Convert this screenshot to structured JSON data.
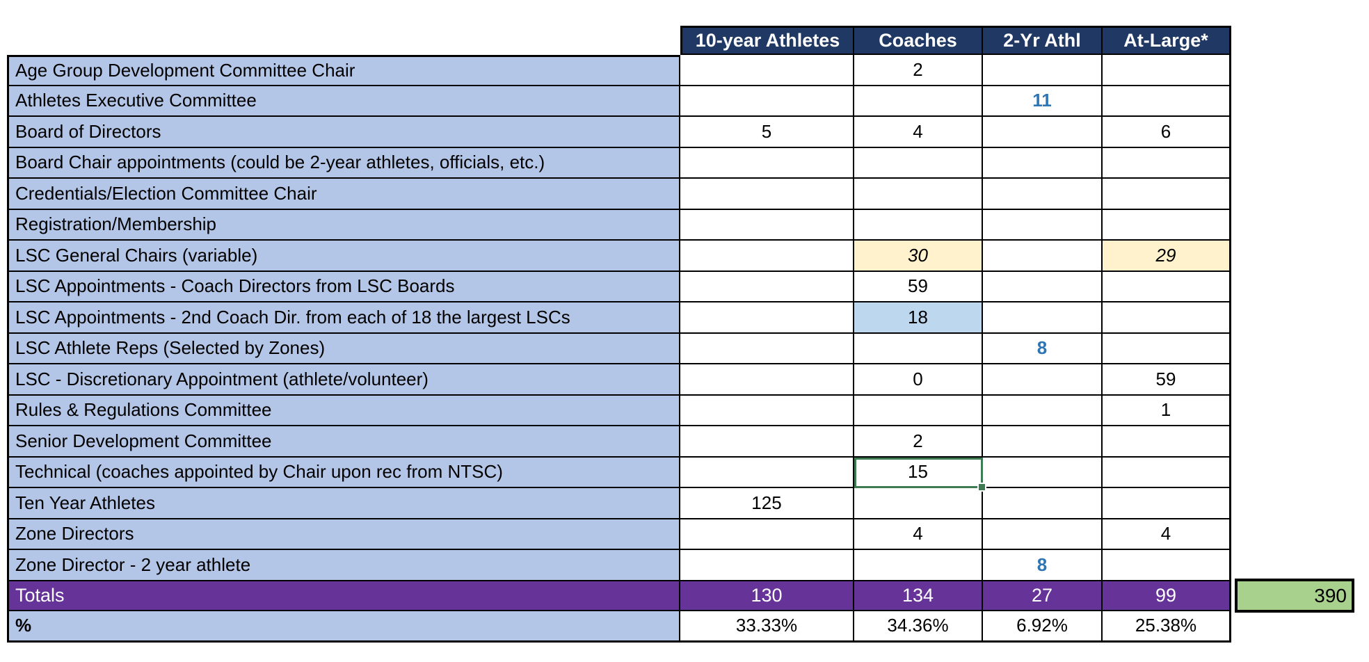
{
  "table": {
    "columns": [
      "10-year Athletes",
      "Coaches",
      "2-Yr Athl",
      "At-Large*"
    ],
    "rows": [
      {
        "label": "Age Group Development Committee Chair",
        "values": [
          "",
          "2",
          "",
          ""
        ]
      },
      {
        "label": "Athletes Executive Committee",
        "values": [
          "",
          "",
          "11",
          ""
        ]
      },
      {
        "label": "Board of Directors",
        "values": [
          "5",
          "4",
          "",
          "6"
        ]
      },
      {
        "label": "Board Chair appointments (could be 2-year athletes, officials, etc.)",
        "values": [
          "",
          "",
          "",
          ""
        ]
      },
      {
        "label": "Credentials/Election Committee Chair",
        "values": [
          "",
          "",
          "",
          ""
        ]
      },
      {
        "label": "Registration/Membership",
        "values": [
          "",
          "",
          "",
          ""
        ]
      },
      {
        "label": "LSC General Chairs (variable)",
        "values": [
          "",
          "30",
          "",
          "29"
        ]
      },
      {
        "label": "LSC Appointments - Coach Directors from LSC Boards",
        "values": [
          "",
          "59",
          "",
          ""
        ]
      },
      {
        "label": "LSC Appointments - 2nd Coach Dir. from each of 18 the largest LSCs",
        "values": [
          "",
          "18",
          "",
          ""
        ]
      },
      {
        "label": "LSC Athlete Reps (Selected by Zones)",
        "values": [
          "",
          "",
          "8",
          ""
        ]
      },
      {
        "label": "LSC - Discretionary Appointment (athlete/volunteer)",
        "values": [
          "",
          "0",
          "",
          "59"
        ]
      },
      {
        "label": "Rules & Regulations Committee",
        "values": [
          "",
          "",
          "",
          "1"
        ]
      },
      {
        "label": "Senior Development Committee",
        "values": [
          "",
          "2",
          "",
          ""
        ]
      },
      {
        "label": "Technical  (coaches appointed by Chair upon rec from NTSC)",
        "values": [
          "",
          "15",
          "",
          ""
        ]
      },
      {
        "label": "Ten Year Athletes",
        "values": [
          "125",
          "",
          "",
          ""
        ]
      },
      {
        "label": "Zone Directors",
        "values": [
          "",
          "4",
          "",
          "4"
        ]
      },
      {
        "label": "Zone Director - 2 year athlete",
        "values": [
          "",
          "",
          "8",
          ""
        ]
      }
    ],
    "totals": {
      "label": "Totals",
      "values": [
        "130",
        "134",
        "27",
        "99"
      ]
    },
    "grand_total": "390",
    "percent_row": {
      "label": "%",
      "values": [
        "33.33%",
        "34.36%",
        "6.92%",
        "25.38%"
      ]
    }
  },
  "colors": {
    "header_bg": "#1F3864",
    "row_label_bg": "#B4C6E7",
    "totals_bg": "#663399",
    "grand_total_bg": "#A9D18E",
    "highlight_cream": "#FFF2CC",
    "highlight_blue": "#BDD7EE",
    "accent_blue_text": "#2E75B6",
    "selection_border": "#3E7B52",
    "gridline": "#000000"
  }
}
